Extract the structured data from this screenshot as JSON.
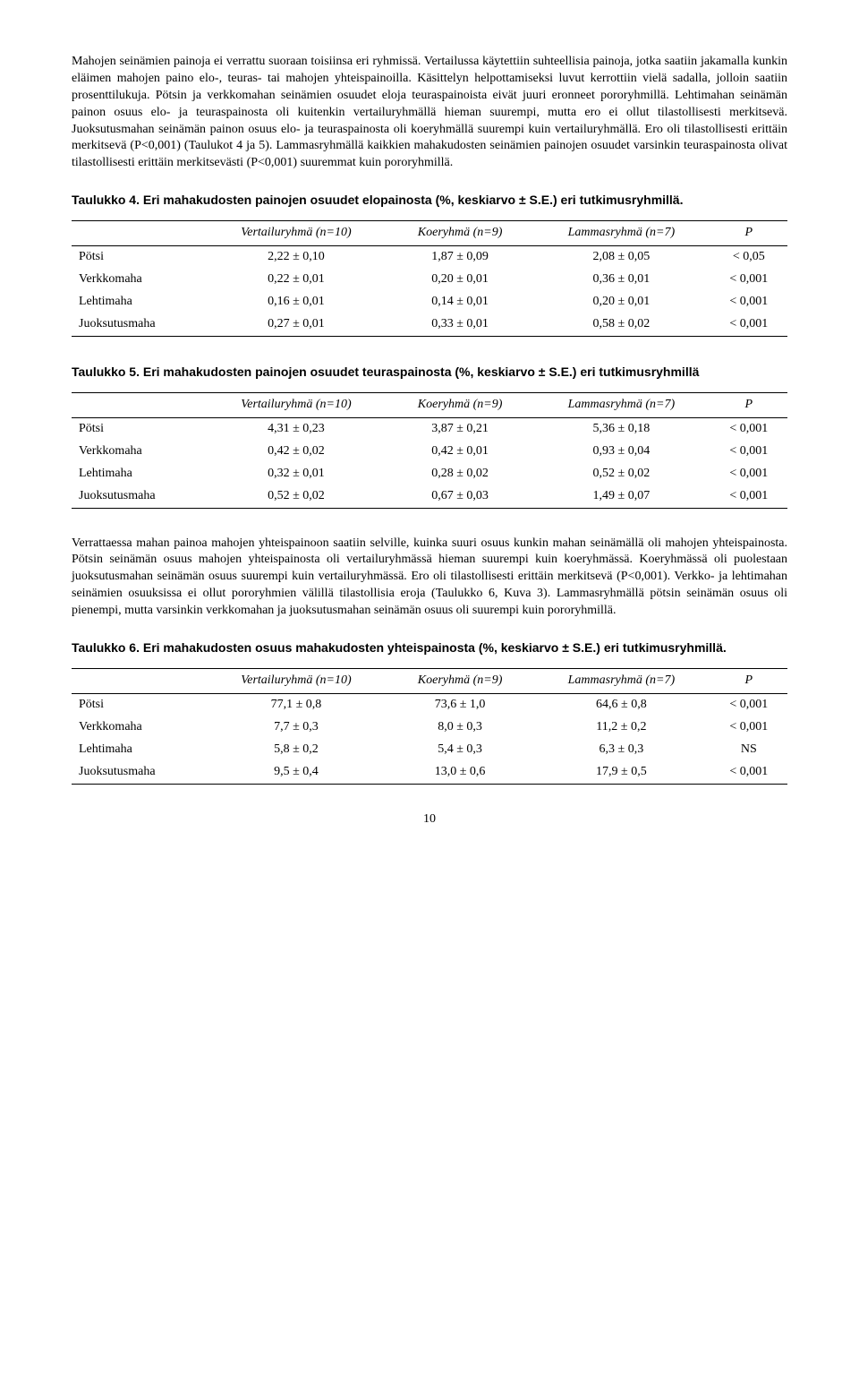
{
  "para1": "Mahojen seinämien painoja ei verrattu suoraan toisiinsa eri ryhmissä. Vertailussa käytettiin suhteellisia painoja, jotka saatiin jakamalla kunkin eläimen mahojen paino elo-, teuras- tai mahojen yhteispainoilla. Käsittelyn helpottamiseksi luvut kerrottiin vielä sadalla, jolloin saatiin prosenttilukuja. Pötsin ja verkkomahan seinämien osuudet eloja teuraspainoista eivät juuri eronneet pororyhmillä. Lehtimahan seinämän painon osuus elo- ja teuraspainosta oli kuitenkin vertailuryhmällä hieman suurempi, mutta ero ei ollut tilastollisesti merkitsevä. Juoksutusmahan seinämän painon osuus elo- ja teuraspainosta oli koeryhmällä suurempi kuin vertailuryhmällä. Ero oli tilastollisesti erittäin merkitsevä (P<0,001) (Taulukot 4 ja 5). Lammasryhmällä kaikkien mahakudosten seinämien painojen osuudet varsinkin teuraspainosta olivat tilastollisesti erittäin merkitsevästi (P<0,001) suuremmat kuin pororyhmillä.",
  "heading4": "Taulukko 4. Eri mahakudosten painojen osuudet elopainosta (%, keskiarvo ± S.E.) eri tutkimusryhmillä.",
  "heading5": "Taulukko 5. Eri mahakudosten painojen osuudet teuraspainosta (%, keskiarvo ± S.E.) eri tutkimusryhmillä",
  "heading6": "Taulukko 6. Eri mahakudosten osuus mahakudosten yhteispainosta (%, keskiarvo ± S.E.) eri tutkimusryhmillä.",
  "para2": "Verrattaessa mahan painoa mahojen yhteispainoon saatiin selville, kuinka suuri osuus kunkin mahan seinämällä oli mahojen yhteispainosta. Pötsin seinämän osuus mahojen yhteispainosta oli vertailuryhmässä hieman suurempi kuin koeryhmässä. Koeryhmässä oli puolestaan juoksutusmahan seinämän osuus suurempi kuin vertailuryhmässä. Ero oli tilastollisesti erittäin merkitsevä (P<0,001). Verkko- ja lehtimahan seinämien osuuksissa ei ollut pororyhmien välillä tilastollisia eroja (Taulukko 6, Kuva 3). Lammasryhmällä pötsin seinämän osuus oli pienempi, mutta varsinkin verkkomahan ja juoksutusmahan seinämän osuus oli suurempi kuin pororyhmillä.",
  "columns": {
    "c0": "",
    "c1": "Vertailuryhmä (n=10)",
    "c2": "Koeryhmä (n=9)",
    "c3": "Lammasryhmä (n=7)",
    "c4": "P"
  },
  "rowlabels": {
    "r0": "Pötsi",
    "r1": "Verkkomaha",
    "r2": "Lehtimaha",
    "r3": "Juoksutusmaha"
  },
  "table4": {
    "rows": [
      [
        "2,22 ± 0,10",
        "1,87 ± 0,09",
        "2,08 ± 0,05",
        "< 0,05"
      ],
      [
        "0,22 ± 0,01",
        "0,20 ± 0,01",
        "0,36 ± 0,01",
        "< 0,001"
      ],
      [
        "0,16 ± 0,01",
        "0,14 ± 0,01",
        "0,20 ± 0,01",
        "< 0,001"
      ],
      [
        "0,27 ± 0,01",
        "0,33 ± 0,01",
        "0,58 ± 0,02",
        "< 0,001"
      ]
    ]
  },
  "table5": {
    "rows": [
      [
        "4,31 ± 0,23",
        "3,87 ± 0,21",
        "5,36 ± 0,18",
        "< 0,001"
      ],
      [
        "0,42 ± 0,02",
        "0,42 ± 0,01",
        "0,93 ± 0,04",
        "< 0,001"
      ],
      [
        "0,32 ± 0,01",
        "0,28 ± 0,02",
        "0,52 ± 0,02",
        "< 0,001"
      ],
      [
        "0,52 ± 0,02",
        "0,67 ± 0,03",
        "1,49 ± 0,07",
        "< 0,001"
      ]
    ]
  },
  "table6": {
    "rows": [
      [
        "77,1 ± 0,8",
        "73,6 ± 1,0",
        "64,6 ± 0,8",
        "< 0,001"
      ],
      [
        "7,7 ± 0,3",
        "8,0 ± 0,3",
        "11,2 ± 0,2",
        "< 0,001"
      ],
      [
        "5,8 ± 0,2",
        "5,4 ± 0,3",
        "6,3 ± 0,3",
        "NS"
      ],
      [
        "9,5 ± 0,4",
        "13,0 ± 0,6",
        "17,9 ± 0,5",
        "< 0,001"
      ]
    ]
  },
  "pagenum": "10"
}
